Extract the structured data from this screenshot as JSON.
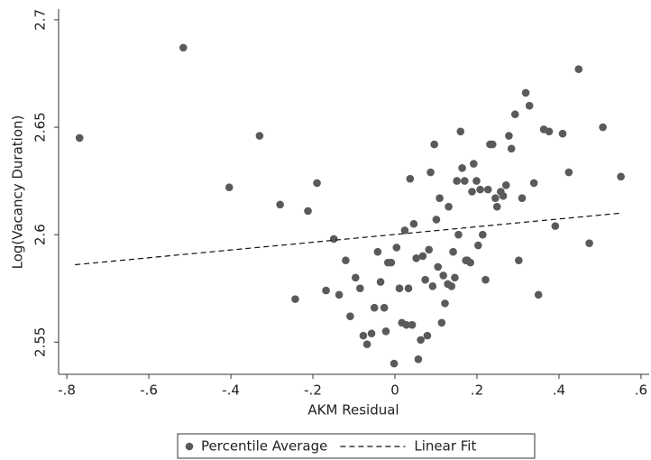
{
  "chart_data": {
    "type": "scatter",
    "x_label": "AKM Residual",
    "y_label": "Log(Vacancy Duration)",
    "xlim": [
      -0.82,
      0.62
    ],
    "ylim": [
      2.535,
      2.705
    ],
    "xticks": [
      {
        "value": -0.8,
        "label": "-.8"
      },
      {
        "value": -0.6,
        "label": "-.6"
      },
      {
        "value": -0.4,
        "label": "-.4"
      },
      {
        "value": -0.2,
        "label": "-.2"
      },
      0,
      {
        "value": 0.2,
        "label": ".2"
      },
      {
        "value": 0.4,
        "label": ".4"
      },
      {
        "value": 0.6,
        "label": ".6"
      }
    ],
    "yticks": [
      2.55,
      2.6,
      2.65,
      2.7
    ],
    "legend": "bottom",
    "series": [
      {
        "name": "Percentile Average",
        "color": "#5a5a5a",
        "mark": "dot",
        "x": [
          -0.769,
          -0.516,
          -0.33,
          -0.404,
          -0.28,
          -0.212,
          -0.19,
          -0.243,
          -0.168,
          -0.136,
          -0.149,
          -0.12,
          -0.109,
          -0.096,
          -0.085,
          -0.077,
          -0.068,
          -0.057,
          -0.05,
          -0.042,
          -0.035,
          -0.026,
          -0.022,
          -0.017,
          -0.009,
          -0.002,
          0.004,
          0.011,
          0.017,
          0.024,
          0.028,
          0.033,
          0.037,
          0.042,
          0.046,
          0.052,
          0.057,
          0.063,
          0.068,
          0.074,
          0.079,
          0.083,
          0.087,
          0.092,
          0.096,
          0.101,
          0.105,
          0.109,
          0.114,
          0.118,
          0.122,
          0.129,
          0.131,
          0.138,
          0.142,
          0.146,
          0.151,
          0.155,
          0.16,
          0.164,
          0.17,
          0.173,
          0.177,
          0.184,
          0.188,
          0.192,
          0.199,
          0.203,
          0.208,
          0.214,
          0.221,
          0.227,
          0.232,
          0.238,
          0.245,
          0.249,
          0.258,
          0.264,
          0.271,
          0.278,
          0.284,
          0.293,
          0.302,
          0.31,
          0.319,
          0.328,
          0.339,
          0.35,
          0.363,
          0.376,
          0.391,
          0.409,
          0.424,
          0.448,
          0.474,
          0.507,
          0.551
        ],
        "values": [
          2.645,
          2.687,
          2.646,
          2.622,
          2.614,
          2.611,
          2.624,
          2.57,
          2.574,
          2.572,
          2.598,
          2.588,
          2.562,
          2.58,
          2.575,
          2.553,
          2.549,
          2.554,
          2.566,
          2.592,
          2.578,
          2.566,
          2.555,
          2.587,
          2.587,
          2.54,
          2.594,
          2.575,
          2.559,
          2.602,
          2.558,
          2.575,
          2.626,
          2.558,
          2.605,
          2.589,
          2.542,
          2.551,
          2.59,
          2.579,
          2.553,
          2.593,
          2.629,
          2.576,
          2.642,
          2.607,
          2.585,
          2.617,
          2.559,
          2.581,
          2.568,
          2.577,
          2.613,
          2.576,
          2.592,
          2.58,
          2.625,
          2.6,
          2.648,
          2.631,
          2.625,
          2.588,
          2.588,
          2.587,
          2.62,
          2.633,
          2.625,
          2.595,
          2.621,
          2.6,
          2.579,
          2.621,
          2.642,
          2.642,
          2.617,
          2.613,
          2.62,
          2.618,
          2.623,
          2.646,
          2.64,
          2.656,
          2.588,
          2.617,
          2.666,
          2.66,
          2.624,
          2.572,
          2.649,
          2.648,
          2.604,
          2.647,
          2.629,
          2.677,
          2.596,
          2.65,
          2.627
        ]
      },
      {
        "name": "Linear Fit",
        "color": "#111111",
        "mark": "dashed-line",
        "x": [
          -0.78,
          0.55
        ],
        "values": [
          2.586,
          2.61
        ]
      }
    ]
  }
}
